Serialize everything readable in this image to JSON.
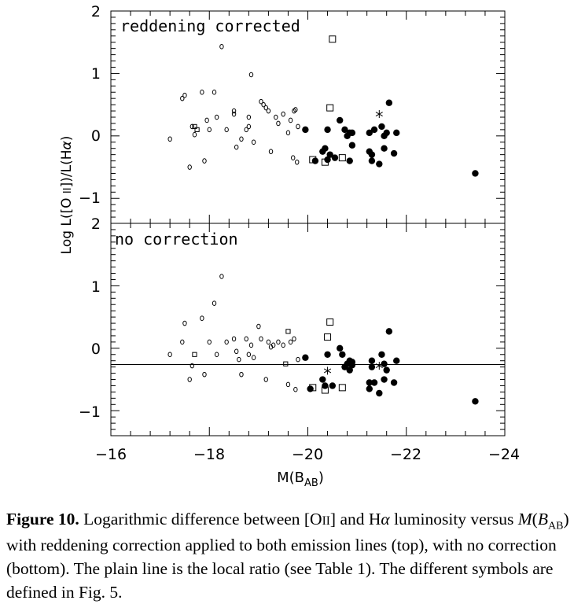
{
  "figure": {
    "ylabel_parts": {
      "a": "Log L([O ",
      "b": "II",
      "c": "])/L(H",
      "d": "α",
      "e": ")"
    },
    "xlabel_parts": {
      "main": "M(B",
      "sub": "AB",
      "close": ")"
    },
    "x_ticks": [
      "−16",
      "−18",
      "−20",
      "−22",
      "−24"
    ],
    "y_ticks_top": [
      "2",
      "1",
      "0",
      "−1"
    ],
    "y_ticks_bottom": [
      "2",
      "1",
      "0",
      "−1"
    ]
  },
  "caption": {
    "label": "Figure 10.",
    "t1": " Logarithmic difference between [O",
    "t2": "II",
    "t3": "] and H",
    "t4": "α",
    "t5": " luminosity versus ",
    "m": "M",
    "t6": "(",
    "b": "B",
    "sub": "AB",
    "t7": ") with reddening correction applied to both emission lines (top), with no correction (bottom). The plain line is the local ratio (see Table 1). The different symbols are defined in Fig. 5."
  },
  "chart_data": [
    {
      "type": "scatter",
      "annotation": "reddening corrected",
      "xlim": [
        -16,
        -24
      ],
      "ylim": [
        -1.4,
        2
      ],
      "grid": false,
      "series": [
        {
          "marker": "small-open-circle",
          "points": [
            [
              -17.2,
              -0.05
            ],
            [
              -17.45,
              0.6
            ],
            [
              -17.5,
              0.65
            ],
            [
              -17.6,
              -0.5
            ],
            [
              -17.65,
              0.15
            ],
            [
              -17.7,
              0.02
            ],
            [
              -17.85,
              0.7
            ],
            [
              -17.9,
              -0.4
            ],
            [
              -17.95,
              0.25
            ],
            [
              -18.0,
              0.1
            ],
            [
              -18.1,
              0.7
            ],
            [
              -18.15,
              0.3
            ],
            [
              -18.25,
              1.43
            ],
            [
              -18.35,
              0.1
            ],
            [
              -18.5,
              0.4
            ],
            [
              -18.5,
              0.35
            ],
            [
              -18.55,
              -0.18
            ],
            [
              -18.65,
              -0.05
            ],
            [
              -18.75,
              0.1
            ],
            [
              -18.8,
              0.15
            ],
            [
              -18.8,
              0.3
            ],
            [
              -18.85,
              0.98
            ],
            [
              -18.9,
              -0.1
            ],
            [
              -19.05,
              0.55
            ],
            [
              -19.1,
              0.5
            ],
            [
              -19.15,
              0.45
            ],
            [
              -19.2,
              0.4
            ],
            [
              -19.25,
              -0.25
            ],
            [
              -19.35,
              0.3
            ],
            [
              -19.4,
              0.2
            ],
            [
              -19.5,
              0.35
            ],
            [
              -19.6,
              0.05
            ],
            [
              -19.65,
              0.25
            ],
            [
              -19.7,
              -0.35
            ],
            [
              -19.72,
              0.4
            ],
            [
              -19.75,
              0.42
            ],
            [
              -19.78,
              -0.42
            ],
            [
              -19.8,
              0.15
            ]
          ]
        },
        {
          "marker": "small-open-square",
          "points": [
            [
              -17.7,
              0.15
            ],
            [
              -17.75,
              0.1
            ]
          ]
        },
        {
          "marker": "filled-circle",
          "points": [
            [
              -19.95,
              0.1
            ],
            [
              -20.15,
              -0.4
            ],
            [
              -20.3,
              -0.25
            ],
            [
              -20.35,
              -0.2
            ],
            [
              -20.4,
              -0.38
            ],
            [
              -20.4,
              0.1
            ],
            [
              -20.45,
              -0.3
            ],
            [
              -20.55,
              -0.35
            ],
            [
              -20.65,
              0.25
            ],
            [
              -20.75,
              0.1
            ],
            [
              -20.8,
              0.0
            ],
            [
              -20.85,
              0.05
            ],
            [
              -20.85,
              -0.4
            ],
            [
              -20.9,
              -0.15
            ],
            [
              -20.9,
              0.05
            ],
            [
              -21.25,
              0.05
            ],
            [
              -21.25,
              -0.25
            ],
            [
              -21.3,
              -0.3
            ],
            [
              -21.3,
              -0.4
            ],
            [
              -21.35,
              0.1
            ],
            [
              -21.45,
              -0.45
            ],
            [
              -21.5,
              0.15
            ],
            [
              -21.55,
              -0.2
            ],
            [
              -21.55,
              0.0
            ],
            [
              -21.6,
              0.05
            ],
            [
              -21.65,
              0.53
            ],
            [
              -21.75,
              -0.28
            ],
            [
              -21.8,
              0.05
            ],
            [
              -23.4,
              -0.6
            ]
          ]
        },
        {
          "marker": "open-square",
          "points": [
            [
              -20.1,
              -0.38
            ],
            [
              -20.35,
              -0.42
            ],
            [
              -20.45,
              0.45
            ],
            [
              -20.5,
              1.55
            ],
            [
              -20.7,
              -0.35
            ]
          ]
        },
        {
          "marker": "star",
          "points": [
            [
              -21.45,
              0.35
            ]
          ]
        }
      ]
    },
    {
      "type": "scatter",
      "annotation": "no correction",
      "xlim": [
        -16,
        -24
      ],
      "ylim": [
        -1.4,
        2
      ],
      "grid": false,
      "reference_line_y": -0.26,
      "series": [
        {
          "marker": "small-open-circle",
          "points": [
            [
              -17.2,
              -0.1
            ],
            [
              -17.45,
              0.1
            ],
            [
              -17.5,
              0.4
            ],
            [
              -17.6,
              -0.5
            ],
            [
              -17.65,
              -0.28
            ],
            [
              -17.85,
              0.48
            ],
            [
              -17.9,
              -0.42
            ],
            [
              -18.0,
              0.1
            ],
            [
              -18.1,
              0.72
            ],
            [
              -18.15,
              -0.1
            ],
            [
              -18.25,
              1.15
            ],
            [
              -18.35,
              0.1
            ],
            [
              -18.5,
              0.15
            ],
            [
              -18.55,
              -0.05
            ],
            [
              -18.6,
              -0.18
            ],
            [
              -18.65,
              -0.42
            ],
            [
              -18.75,
              0.15
            ],
            [
              -18.8,
              -0.1
            ],
            [
              -18.85,
              0.05
            ],
            [
              -18.9,
              -0.15
            ],
            [
              -19.0,
              0.35
            ],
            [
              -19.05,
              0.15
            ],
            [
              -19.15,
              -0.5
            ],
            [
              -19.2,
              0.1
            ],
            [
              -19.25,
              0.02
            ],
            [
              -19.3,
              0.05
            ],
            [
              -19.4,
              0.1
            ],
            [
              -19.5,
              0.05
            ],
            [
              -19.6,
              -0.58
            ],
            [
              -19.65,
              0.1
            ],
            [
              -19.72,
              0.15
            ],
            [
              -19.75,
              -0.66
            ],
            [
              -19.8,
              -0.18
            ]
          ]
        },
        {
          "marker": "small-open-square",
          "points": [
            [
              -17.7,
              -0.1
            ],
            [
              -19.55,
              -0.25
            ],
            [
              -19.6,
              0.27
            ]
          ]
        },
        {
          "marker": "filled-circle",
          "points": [
            [
              -19.95,
              -0.15
            ],
            [
              -20.05,
              -0.65
            ],
            [
              -20.3,
              -0.5
            ],
            [
              -20.35,
              -0.6
            ],
            [
              -20.4,
              -0.1
            ],
            [
              -20.5,
              -0.6
            ],
            [
              -20.65,
              0.0
            ],
            [
              -20.7,
              -0.1
            ],
            [
              -20.75,
              -0.3
            ],
            [
              -20.8,
              -0.25
            ],
            [
              -20.85,
              -0.2
            ],
            [
              -20.85,
              -0.35
            ],
            [
              -20.9,
              -0.27
            ],
            [
              -20.9,
              -0.22
            ],
            [
              -21.25,
              -0.55
            ],
            [
              -21.25,
              -0.65
            ],
            [
              -21.3,
              -0.2
            ],
            [
              -21.3,
              -0.3
            ],
            [
              -21.35,
              -0.55
            ],
            [
              -21.45,
              -0.72
            ],
            [
              -21.5,
              -0.1
            ],
            [
              -21.55,
              -0.25
            ],
            [
              -21.55,
              -0.5
            ],
            [
              -21.6,
              -0.35
            ],
            [
              -21.65,
              0.27
            ],
            [
              -21.75,
              -0.55
            ],
            [
              -21.8,
              -0.2
            ],
            [
              -23.4,
              -0.85
            ]
          ]
        },
        {
          "marker": "open-square",
          "points": [
            [
              -20.1,
              -0.63
            ],
            [
              -20.35,
              -0.67
            ],
            [
              -20.4,
              0.18
            ],
            [
              -20.45,
              0.42
            ],
            [
              -20.7,
              -0.63
            ]
          ]
        },
        {
          "marker": "star",
          "points": [
            [
              -20.4,
              -0.36
            ],
            [
              -21.45,
              -0.28
            ]
          ]
        }
      ]
    }
  ]
}
